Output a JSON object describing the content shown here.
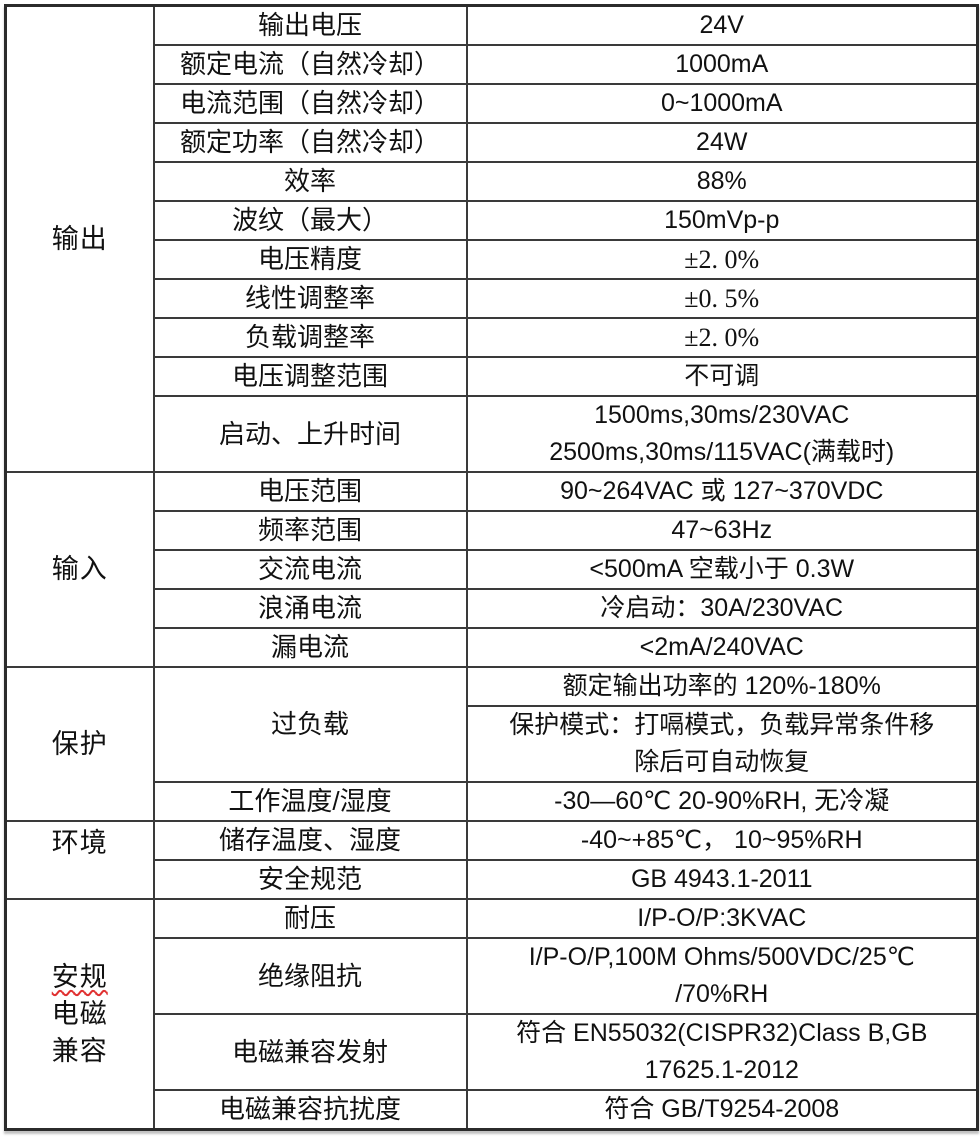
{
  "page": {
    "background": "#ffffff"
  },
  "colors": {
    "border": "#3a3a3a",
    "outer_border": "#2b2b2b",
    "text": "#111111",
    "spellcheck_wavy": "#e03030"
  },
  "table": {
    "columns": [
      "group",
      "parameter",
      "value"
    ],
    "sections": [
      {
        "label": "输出",
        "rows": [
          {
            "param": "输出电压",
            "value": "24V"
          },
          {
            "param": "额定电流（自然冷却）",
            "value": "1000mA"
          },
          {
            "param": "电流范围（自然冷却）",
            "value": "0~1000mA"
          },
          {
            "param": "额定功率（自然冷却）",
            "value": "24W"
          },
          {
            "param": "效率",
            "value": "88%"
          },
          {
            "param": "波纹（最大）",
            "value": "150mVp-p"
          },
          {
            "param": "电压精度",
            "value": "±2. 0%",
            "serif": true
          },
          {
            "param": "线性调整率",
            "value": "±0. 5%",
            "serif": true
          },
          {
            "param": "负载调整率",
            "value": "±2. 0%",
            "serif": true
          },
          {
            "param": "电压调整范围",
            "value": "不可调"
          },
          {
            "param": "启动、上升时间",
            "value": "1500ms,30ms/230VAC\n2500ms,30ms/115VAC(满载时)"
          }
        ]
      },
      {
        "label": "输入",
        "rows": [
          {
            "param": "电压范围",
            "value": "90~264VAC 或 127~370VDC"
          },
          {
            "param": "频率范围",
            "value": "47~63Hz"
          },
          {
            "param": "交流电流",
            "value": "<500mA 空载小于 0.3W"
          },
          {
            "param": "浪涌电流",
            "value": "冷启动：30A/230VAC"
          },
          {
            "param": "漏电流",
            "value": "<2mA/240VAC"
          }
        ]
      },
      {
        "label": "保护",
        "rows": [
          {
            "param": "过负载",
            "param_rowspan": 2,
            "value": "额定输出功率的 120%-180%"
          },
          {
            "value": "保护模式：打嗝模式，负载异常条件移\n除后可自动恢复"
          },
          {
            "param": "工作温度/湿度",
            "value": "-30—60℃  20-90%RH, 无冷凝"
          }
        ]
      },
      {
        "label": "环境",
        "label_valign": "top",
        "rows": [
          {
            "param": "储存温度、湿度",
            "value": "-40~+85℃， 10~95%RH"
          },
          {
            "param": "安全规范",
            "value": "GB 4943.1-2011"
          }
        ]
      },
      {
        "label": "安规\n电磁\n兼容",
        "wavy_underline_text": "安规",
        "rows": [
          {
            "param": "耐压",
            "value": "I/P-O/P:3KVAC"
          },
          {
            "param": "绝缘阻抗",
            "value": "I/P-O/P,100M Ohms/500VDC/25℃\n/70%RH"
          },
          {
            "param": "电磁兼容发射",
            "value": "符合 EN55032(CISPR32)Class B,GB\n17625.1-2012"
          },
          {
            "param": "电磁兼容抗扰度",
            "value": "符合 GB/T9254-2008"
          }
        ]
      }
    ]
  }
}
